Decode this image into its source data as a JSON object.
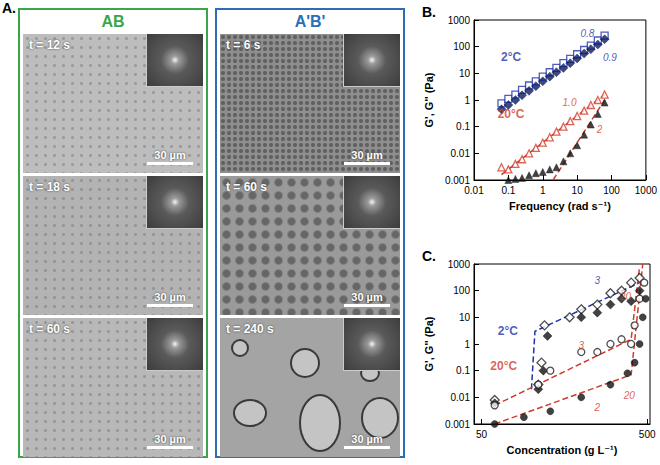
{
  "panel_a": {
    "label": "A.",
    "columns": [
      {
        "title": "AB",
        "color": "#3aa64a",
        "frames": [
          {
            "time": "t = 12 s",
            "scale_bar": "30 µm"
          },
          {
            "time": "t = 18 s",
            "scale_bar": "30 µm"
          },
          {
            "time": "t = 60 s",
            "scale_bar": "30 µm"
          }
        ]
      },
      {
        "title": "A'B'",
        "color": "#2a6fb5",
        "frames": [
          {
            "time": "t = 6 s",
            "scale_bar": "30 µm"
          },
          {
            "time": "t = 60 s",
            "scale_bar": "30 µm"
          },
          {
            "time": "t = 240 s",
            "scale_bar": "30 µm"
          }
        ]
      }
    ]
  },
  "chart_data": [
    {
      "type": "scatter",
      "title": "B.",
      "x_label": "Frequency (rad s⁻¹)",
      "y_label": "G', G'' (Pa)",
      "log": true,
      "grid": false,
      "xlim": [
        0.01,
        1000
      ],
      "xticks": [
        0.01,
        0.1,
        1,
        10,
        100,
        1000
      ],
      "ylim": [
        0.001,
        1000
      ],
      "yticks": [
        0.001,
        0.01,
        0.1,
        1,
        10,
        100,
        1000
      ],
      "series": [
        {
          "type": "scatter",
          "marker": "square-open",
          "color": "#2233aa",
          "x": [
            0.063,
            0.1,
            0.16,
            0.25,
            0.4,
            0.63,
            1,
            1.6,
            2.5,
            4,
            6.3,
            10,
            16,
            25,
            40,
            63
          ],
          "values": [
            0.75,
            1.1,
            1.6,
            2.4,
            3.5,
            5,
            7.5,
            11,
            16,
            24,
            35,
            52,
            75,
            110,
            170,
            260
          ]
        },
        {
          "type": "scatter",
          "marker": "diamond",
          "color": "#0d1b5e",
          "x": [
            0.063,
            0.1,
            0.16,
            0.25,
            0.4,
            0.63,
            1,
            1.6,
            2.5,
            4,
            6.3,
            10,
            16,
            25,
            40,
            63
          ],
          "values": [
            0.45,
            0.65,
            1,
            1.5,
            2.2,
            3.3,
            5,
            7.5,
            11,
            16,
            24,
            36,
            55,
            80,
            120,
            190
          ]
        },
        {
          "type": "scatter",
          "marker": "triangle-open",
          "color": "#d23b2b",
          "x": [
            0.063,
            0.1,
            0.16,
            0.25,
            0.4,
            0.63,
            1,
            1.6,
            2.5,
            4,
            6.3,
            10,
            16,
            25,
            40,
            63
          ],
          "values": [
            0.003,
            0.0025,
            0.004,
            0.006,
            0.01,
            0.016,
            0.025,
            0.04,
            0.065,
            0.1,
            0.16,
            0.25,
            0.4,
            0.65,
            1.0,
            1.6
          ]
        },
        {
          "type": "scatter",
          "marker": "triangle",
          "color": "#111111",
          "x": [
            0.1,
            0.16,
            0.25,
            0.4,
            0.63,
            1,
            1.6,
            2.5,
            4,
            6.3,
            10,
            16,
            25,
            40,
            63
          ],
          "values": [
            0.001,
            0.0011,
            0.0012,
            0.0015,
            0.0018,
            0.002,
            0.0025,
            0.003,
            0.005,
            0.01,
            0.02,
            0.05,
            0.12,
            0.3,
            0.8
          ]
        },
        {
          "type": "line",
          "line_style": "dashed",
          "color": "#d23b2b",
          "x": [
            0.063,
            63
          ],
          "values": [
            0.0016,
            1.6
          ]
        },
        {
          "type": "line",
          "line_style": "dashed",
          "color": "#d23b2b",
          "x": [
            2,
            63
          ],
          "values": [
            0.001,
            1.0
          ]
        }
      ],
      "annotations": [
        {
          "text": "2°C",
          "x": 0.12,
          "y": 40,
          "color": "#2233aa"
        },
        {
          "text": "0.8",
          "x": 20,
          "y": 300,
          "color": "#2233aa"
        },
        {
          "text": "0.9",
          "x": 90,
          "y": 40,
          "color": "#2233aa"
        },
        {
          "text": "20°C",
          "x": 0.12,
          "y": 0.3,
          "color": "#d23b2b"
        },
        {
          "text": "1.0",
          "x": 6,
          "y": 0.8,
          "color": "#d23b2b"
        },
        {
          "text": "2",
          "x": 45,
          "y": 0.08,
          "color": "#d23b2b"
        }
      ]
    },
    {
      "type": "scatter",
      "title": "C.",
      "x_label": "Concentration (g L⁻¹)",
      "y_label": "G', G'' (Pa)",
      "log": true,
      "grid": false,
      "xlim": [
        45,
        520
      ],
      "xticks": [
        50,
        500
      ],
      "ylim": [
        0.001,
        1000
      ],
      "yticks": [
        0.001,
        0.01,
        0.1,
        1,
        10,
        100,
        1000
      ],
      "series": [
        {
          "type": "scatter",
          "marker": "diamond-open",
          "color": "#222222",
          "x": [
            60,
            110,
            115,
            120,
            170,
            200,
            250,
            300,
            350,
            400,
            450
          ],
          "values": [
            0.008,
            0.03,
            0.2,
            5,
            10,
            20,
            30,
            80,
            100,
            200,
            300
          ]
        },
        {
          "type": "scatter",
          "marker": "diamond",
          "color": "#111111",
          "x": [
            60,
            110,
            118,
            125,
            200,
            250,
            300,
            350,
            400,
            450
          ],
          "values": [
            0.006,
            0.02,
            0.1,
            2,
            10,
            15,
            30,
            50,
            40,
            100
          ]
        },
        {
          "type": "scatter",
          "marker": "circle-open",
          "color": "#222222",
          "x": [
            60,
            110,
            130,
            200,
            250,
            300,
            350,
            400,
            420,
            450,
            480
          ],
          "values": [
            0.005,
            0.03,
            0.1,
            0.5,
            0.5,
            1,
            1.5,
            1,
            5,
            50,
            200
          ]
        },
        {
          "type": "scatter",
          "marker": "circle",
          "color": "#111111",
          "x": [
            60,
            90,
            130,
            200,
            300,
            380,
            420,
            450,
            470,
            490
          ],
          "values": [
            0.001,
            0.0018,
            0.003,
            0.01,
            0.03,
            0.08,
            0.2,
            1,
            10,
            50
          ]
        },
        {
          "type": "line",
          "line_style": "dashed",
          "color": "#2233aa",
          "x": [
            100,
            105,
            450
          ],
          "values": [
            0.02,
            3,
            200
          ]
        },
        {
          "type": "line",
          "line_style": "dashed",
          "color": "#d23b2b",
          "x": [
            60,
            400,
            450
          ],
          "values": [
            0.005,
            1.5,
            800
          ]
        },
        {
          "type": "line",
          "line_style": "dashed",
          "color": "#d23b2b",
          "x": [
            60,
            400,
            470
          ],
          "values": [
            0.001,
            0.07,
            1000
          ]
        }
      ],
      "annotations": [
        {
          "text": "2°C",
          "x": 72,
          "y": 3,
          "color": "#2233aa"
        },
        {
          "text": "3",
          "x": 250,
          "y": 250,
          "color": "#2233aa"
        },
        {
          "text": "20°C",
          "x": 68,
          "y": 0.15,
          "color": "#d23b2b"
        },
        {
          "text": "3",
          "x": 200,
          "y": 0.9,
          "color": "#d23b2b"
        },
        {
          "text": "20",
          "x": 370,
          "y": 60,
          "color": "#d23b2b"
        },
        {
          "text": "20",
          "x": 390,
          "y": 0.012,
          "color": "#d23b2b"
        },
        {
          "text": "2",
          "x": 250,
          "y": 0.004,
          "color": "#d23b2b"
        }
      ]
    }
  ]
}
